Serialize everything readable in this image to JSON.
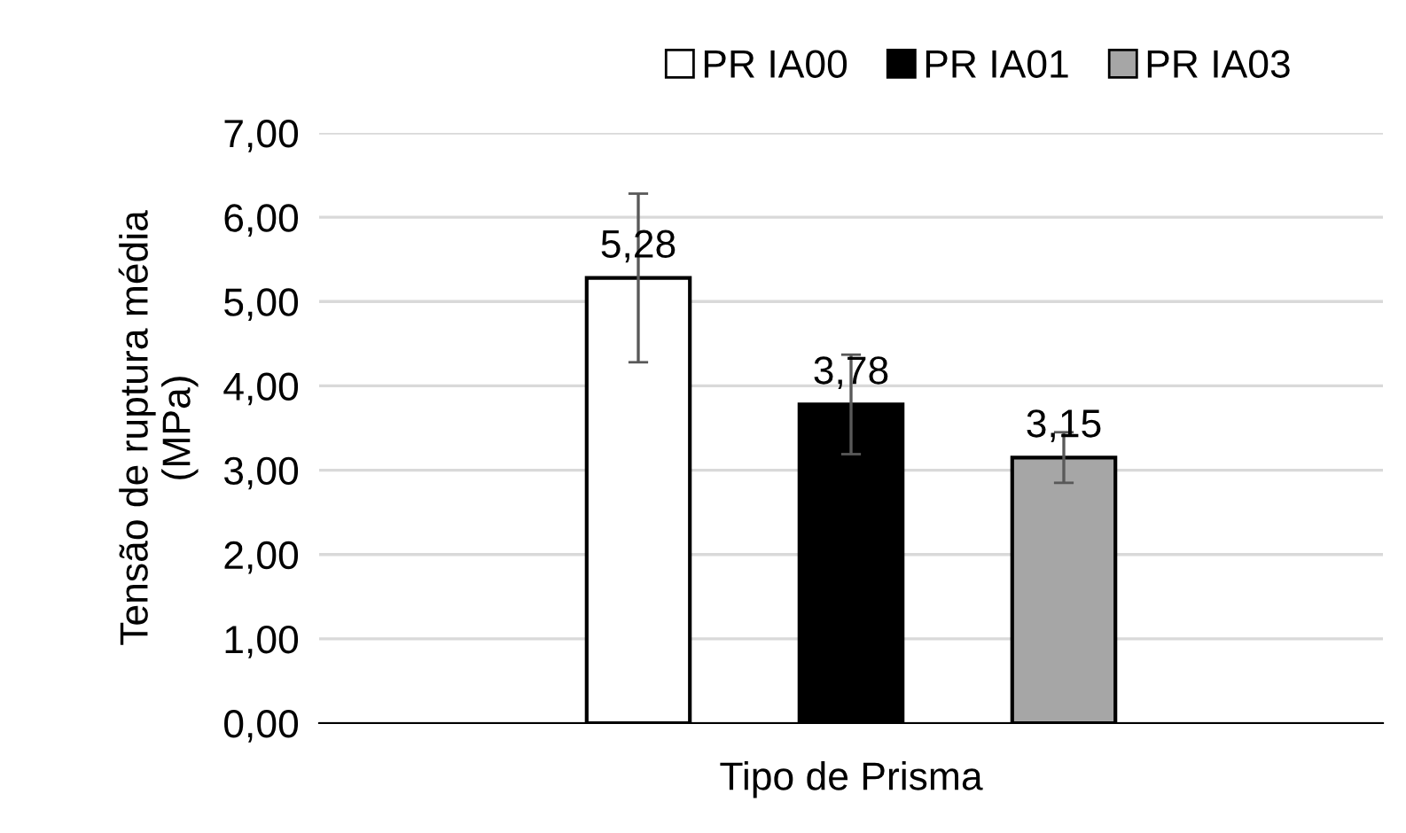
{
  "chart_data": {
    "type": "bar",
    "xlabel": "Tipo de Prisma",
    "ylabel": "Tensão de ruptura média\n(MPa)",
    "categories": [
      null
    ],
    "series": [
      {
        "name": "PR IA00",
        "color": "#ffffff",
        "values": [
          5.28
        ],
        "errors": [
          1.0
        ],
        "value_labels": [
          "5,28"
        ]
      },
      {
        "name": "PR IA01",
        "color": "#000000",
        "values": [
          3.78
        ],
        "errors": [
          0.59
        ],
        "value_labels": [
          "3,78"
        ]
      },
      {
        "name": "PR IA03",
        "color": "#a6a6a6",
        "values": [
          3.15
        ],
        "errors": [
          0.3
        ],
        "value_labels": [
          "3,15"
        ]
      }
    ],
    "ylim": [
      0,
      7
    ],
    "yticks": [
      {
        "value": 0,
        "label": "0,00"
      },
      {
        "value": 1,
        "label": "1,00"
      },
      {
        "value": 2,
        "label": "2,00"
      },
      {
        "value": 3,
        "label": "3,00"
      },
      {
        "value": 4,
        "label": "4,00"
      },
      {
        "value": 5,
        "label": "5,00"
      },
      {
        "value": 6,
        "label": "6,00"
      },
      {
        "value": 7,
        "label": "7,00"
      }
    ],
    "grid": "y",
    "legend": "top"
  }
}
